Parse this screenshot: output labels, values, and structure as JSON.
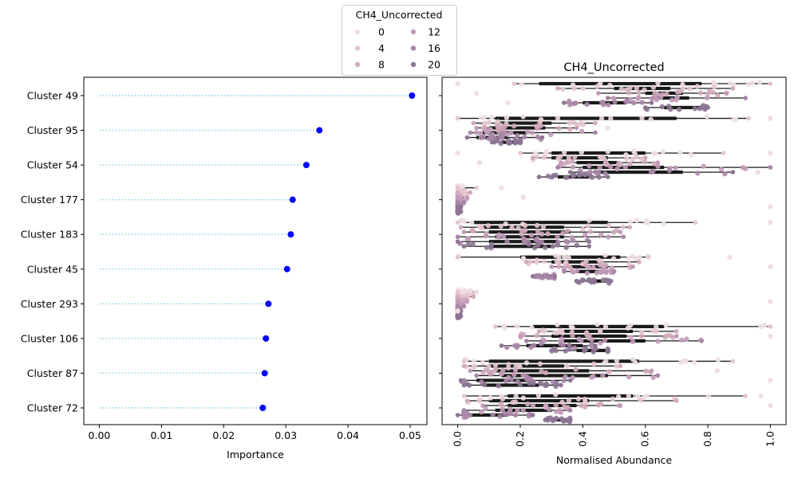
{
  "chart_data": [
    {
      "type": "scatter",
      "title": "",
      "xlabel": "Importance",
      "ylabel": "",
      "xlim": [
        -0.0025,
        0.0527
      ],
      "x_ticks": [
        0.0,
        0.01,
        0.02,
        0.03,
        0.04,
        0.05
      ],
      "x_tick_labels": [
        "0.00",
        "0.01",
        "0.02",
        "0.03",
        "0.04",
        "0.05"
      ],
      "categories": [
        "Cluster 49",
        "Cluster 95",
        "Cluster 54",
        "Cluster 177",
        "Cluster 183",
        "Cluster 45",
        "Cluster 293",
        "Cluster 106",
        "Cluster 87",
        "Cluster 72"
      ],
      "values": [
        0.0503,
        0.0354,
        0.0333,
        0.0311,
        0.0308,
        0.0302,
        0.0272,
        0.0268,
        0.0266,
        0.0263
      ],
      "grid": false,
      "marker_color": "#0000ff",
      "stem_color": "#87ceeb"
    },
    {
      "type": "box",
      "title": "CH4_Uncorrected",
      "xlabel": "Normalised Abundance",
      "ylabel": "",
      "xlim": [
        -0.05,
        1.05
      ],
      "x_ticks": [
        0.0,
        0.2,
        0.4,
        0.6,
        0.8,
        1.0
      ],
      "x_tick_labels": [
        "0.0",
        "0.2",
        "0.4",
        "0.6",
        "0.8",
        "1.0"
      ],
      "categories": [
        "Cluster 49",
        "Cluster 95",
        "Cluster 54",
        "Cluster 177",
        "Cluster 183",
        "Cluster 45",
        "Cluster 293",
        "Cluster 106",
        "Cluster 87",
        "Cluster 72"
      ],
      "hue_levels": 6,
      "groups": [
        {
          "cluster": "Cluster 49",
          "boxes": [
            [
              0.18,
              0.26,
              0.44,
              0.78,
              1.0
            ],
            [
              0.32,
              0.5,
              0.58,
              0.68,
              0.88
            ],
            [
              0.45,
              0.6,
              0.66,
              0.72,
              0.86
            ],
            [
              0.48,
              0.62,
              0.68,
              0.74,
              0.92
            ],
            [
              0.34,
              0.4,
              0.47,
              0.54,
              0.62
            ],
            [
              0.6,
              0.66,
              0.72,
              0.78,
              0.8
            ]
          ]
        },
        {
          "cluster": "Cluster 95",
          "boxes": [
            [
              0.0,
              0.12,
              0.3,
              0.7,
              0.93
            ],
            [
              0.05,
              0.12,
              0.2,
              0.3,
              0.44
            ],
            [
              0.06,
              0.1,
              0.18,
              0.28,
              0.38
            ],
            [
              0.04,
              0.08,
              0.14,
              0.22,
              0.44
            ],
            [
              0.03,
              0.06,
              0.1,
              0.16,
              0.27
            ],
            [
              0.11,
              0.14,
              0.17,
              0.2,
              0.2
            ]
          ]
        },
        {
          "cluster": "Cluster 54",
          "boxes": [
            [
              0.2,
              0.3,
              0.45,
              0.6,
              0.85
            ],
            [
              0.24,
              0.3,
              0.38,
              0.48,
              0.6
            ],
            [
              0.33,
              0.38,
              0.44,
              0.52,
              0.64
            ],
            [
              0.32,
              0.4,
              0.5,
              0.66,
              1.0
            ],
            [
              0.36,
              0.44,
              0.58,
              0.72,
              0.88
            ],
            [
              0.26,
              0.32,
              0.38,
              0.42,
              0.48
            ]
          ]
        },
        {
          "cluster": "Cluster 177",
          "boxes": [
            [
              0.0,
              0.0,
              0.01,
              0.02,
              0.06
            ],
            [
              0.0,
              0.0,
              0.01,
              0.02,
              0.04
            ],
            [
              0.0,
              0.0,
              0.005,
              0.01,
              0.03
            ],
            [
              0.0,
              0.0,
              0.005,
              0.01,
              0.02
            ],
            [
              0.0,
              0.0,
              0.002,
              0.005,
              0.01
            ],
            [
              0.0,
              0.0,
              0.002,
              0.004,
              0.01
            ]
          ]
        },
        {
          "cluster": "Cluster 183",
          "boxes": [
            [
              0.0,
              0.05,
              0.2,
              0.48,
              0.76
            ],
            [
              0.01,
              0.08,
              0.2,
              0.34,
              0.55
            ],
            [
              0.02,
              0.1,
              0.24,
              0.36,
              0.52
            ],
            [
              0.0,
              0.12,
              0.26,
              0.34,
              0.53
            ],
            [
              0.0,
              0.1,
              0.22,
              0.32,
              0.42
            ],
            [
              0.02,
              0.1,
              0.2,
              0.3,
              0.42
            ]
          ]
        },
        {
          "cluster": "Cluster 45",
          "boxes": [
            [
              0.0,
              0.2,
              0.38,
              0.52,
              0.61
            ],
            [
              0.22,
              0.3,
              0.4,
              0.46,
              0.58
            ],
            [
              0.3,
              0.36,
              0.42,
              0.48,
              0.56
            ],
            [
              0.34,
              0.38,
              0.44,
              0.48,
              0.5
            ],
            [
              0.24,
              0.26,
              0.28,
              0.3,
              0.31
            ],
            [
              0.38,
              0.42,
              0.46,
              0.48,
              0.49
            ]
          ]
        },
        {
          "cluster": "Cluster 293",
          "boxes": [
            [
              0.0,
              0.0,
              0.01,
              0.03,
              0.06
            ],
            [
              0.0,
              0.0,
              0.01,
              0.02,
              0.05
            ],
            [
              0.0,
              0.0,
              0.005,
              0.01,
              0.03
            ],
            [
              0.0,
              0.0,
              0.004,
              0.01,
              0.02
            ],
            [
              0.0,
              0.0,
              0.002,
              0.005,
              0.01
            ],
            [
              0.0,
              0.0,
              0.002,
              0.004,
              0.01
            ]
          ]
        },
        {
          "cluster": "Cluster 106",
          "boxes": [
            [
              0.12,
              0.24,
              0.44,
              0.66,
              1.0
            ],
            [
              0.26,
              0.34,
              0.44,
              0.56,
              0.7
            ],
            [
              0.2,
              0.3,
              0.42,
              0.54,
              0.7
            ],
            [
              0.22,
              0.34,
              0.46,
              0.6,
              0.78
            ],
            [
              0.14,
              0.22,
              0.3,
              0.4,
              0.44
            ],
            [
              0.3,
              0.38,
              0.44,
              0.48,
              0.48
            ]
          ]
        },
        {
          "cluster": "Cluster 87",
          "boxes": [
            [
              0.02,
              0.1,
              0.3,
              0.58,
              0.88
            ],
            [
              0.02,
              0.1,
              0.2,
              0.34,
              0.52
            ],
            [
              0.04,
              0.12,
              0.26,
              0.42,
              0.62
            ],
            [
              0.06,
              0.14,
              0.28,
              0.48,
              0.64
            ],
            [
              0.01,
              0.06,
              0.14,
              0.24,
              0.36
            ],
            [
              0.02,
              0.08,
              0.16,
              0.26,
              0.33
            ]
          ]
        },
        {
          "cluster": "Cluster 72",
          "boxes": [
            [
              0.02,
              0.16,
              0.36,
              0.56,
              0.92
            ],
            [
              0.03,
              0.1,
              0.22,
              0.42,
              0.7
            ],
            [
              0.08,
              0.16,
              0.28,
              0.38,
              0.52
            ],
            [
              0.02,
              0.12,
              0.24,
              0.3,
              0.36
            ],
            [
              0.0,
              0.04,
              0.1,
              0.16,
              0.24
            ],
            [
              0.28,
              0.3,
              0.33,
              0.35,
              0.36
            ]
          ]
        }
      ],
      "outliers": [
        {
          "cluster": "Cluster 49",
          "values": [
            0.0,
            0.06,
            0.16
          ]
        },
        {
          "cluster": "Cluster 95",
          "values": [
            1.0,
            0.48
          ]
        },
        {
          "cluster": "Cluster 54",
          "values": [
            0.0,
            0.07,
            0.96,
            1.0
          ]
        },
        {
          "cluster": "Cluster 177",
          "values": [
            0.14,
            0.21,
            1.0
          ]
        },
        {
          "cluster": "Cluster 183",
          "values": [
            1.0
          ]
        },
        {
          "cluster": "Cluster 45",
          "values": [
            0.87,
            1.0
          ]
        },
        {
          "cluster": "Cluster 293",
          "values": [
            0.06,
            1.0,
            0.0
          ]
        },
        {
          "cluster": "Cluster 106",
          "values": [
            0.97,
            1.0
          ]
        },
        {
          "cluster": "Cluster 87",
          "values": [
            0.73,
            0.83,
            1.0
          ]
        },
        {
          "cluster": "Cluster 72",
          "values": [
            0.97,
            1.0
          ]
        }
      ],
      "legend": {
        "title": "CH4_Uncorrected",
        "placement": "top-center",
        "entries": [
          {
            "label": "0",
            "color": "#f0dfe2"
          },
          {
            "label": "4",
            "color": "#e5c6cf"
          },
          {
            "label": "8",
            "color": "#d2aabe"
          },
          {
            "label": "12",
            "color": "#c29bb9"
          },
          {
            "label": "16",
            "color": "#a886a8"
          },
          {
            "label": "20",
            "color": "#8c7694"
          }
        ]
      },
      "box_color": "#1a1a1a",
      "grid": false
    }
  ]
}
